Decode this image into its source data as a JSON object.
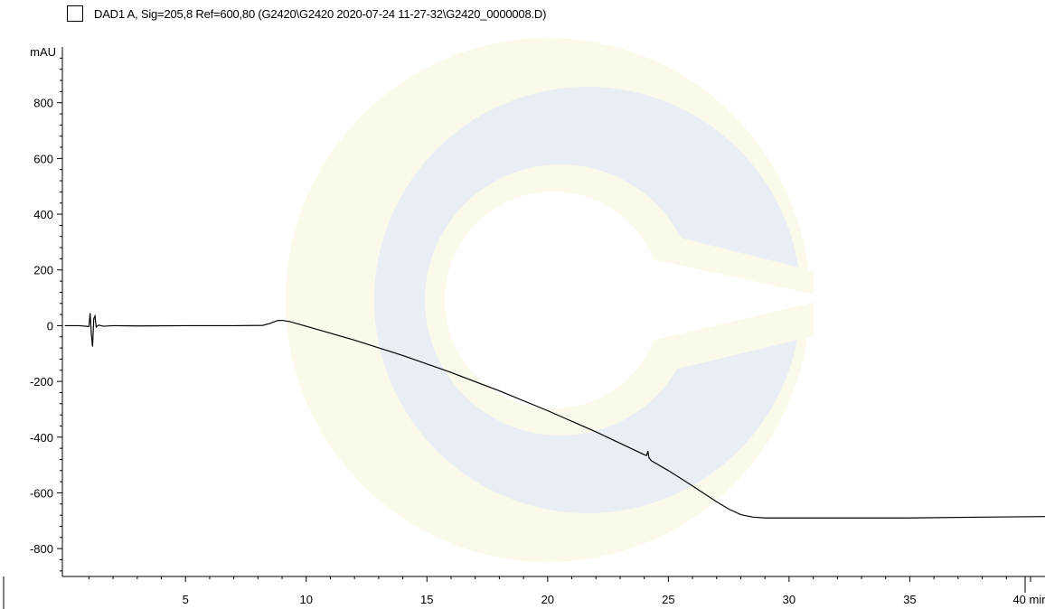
{
  "legend": {
    "text": "DAD1 A, Sig=205,8 Ref=600,80 (G2420\\G2420 2020-07-24 11-27-32\\G2420_0000008.D)"
  },
  "colors": {
    "trace": "#000000",
    "axis": "#000000",
    "watermark_blue": "#e9edf4",
    "watermark_yellow": "#fbfaea"
  },
  "chart_data": {
    "type": "line",
    "title": "",
    "ylabel": "mAU",
    "xunit": "min",
    "xlim": [
      -0.1,
      40.6
    ],
    "ylim": [
      -900,
      1000
    ],
    "xticks": [
      5,
      10,
      15,
      20,
      25,
      30,
      35,
      40
    ],
    "yticks": [
      800,
      600,
      400,
      200,
      0,
      -200,
      -400,
      -600,
      -800
    ],
    "series": [
      {
        "points": [
          [
            0.0,
            0
          ],
          [
            0.6,
            0
          ],
          [
            1.0,
            -3
          ],
          [
            1.05,
            45
          ],
          [
            1.1,
            -30
          ],
          [
            1.15,
            -75
          ],
          [
            1.2,
            25
          ],
          [
            1.25,
            35
          ],
          [
            1.3,
            -5
          ],
          [
            1.4,
            2
          ],
          [
            1.6,
            -2
          ],
          [
            2.0,
            0
          ],
          [
            3.0,
            -1
          ],
          [
            5.0,
            0
          ],
          [
            7.0,
            0
          ],
          [
            8.2,
            1
          ],
          [
            8.5,
            8
          ],
          [
            8.8,
            18
          ],
          [
            9.0,
            19
          ],
          [
            9.3,
            15
          ],
          [
            10.0,
            -2
          ],
          [
            12.0,
            -52
          ],
          [
            14.0,
            -107
          ],
          [
            16.0,
            -168
          ],
          [
            18.0,
            -234
          ],
          [
            20.0,
            -305
          ],
          [
            22.0,
            -381
          ],
          [
            24.0,
            -463
          ],
          [
            24.1,
            -466
          ],
          [
            24.15,
            -450
          ],
          [
            24.2,
            -475
          ],
          [
            24.3,
            -485
          ],
          [
            25.0,
            -520
          ],
          [
            26.0,
            -575
          ],
          [
            27.0,
            -632
          ],
          [
            27.5,
            -658
          ],
          [
            28.0,
            -678
          ],
          [
            28.5,
            -687
          ],
          [
            29.0,
            -690
          ],
          [
            32.0,
            -690
          ],
          [
            35.0,
            -690
          ],
          [
            38.0,
            -687
          ],
          [
            40.6,
            -685
          ]
        ]
      }
    ]
  }
}
